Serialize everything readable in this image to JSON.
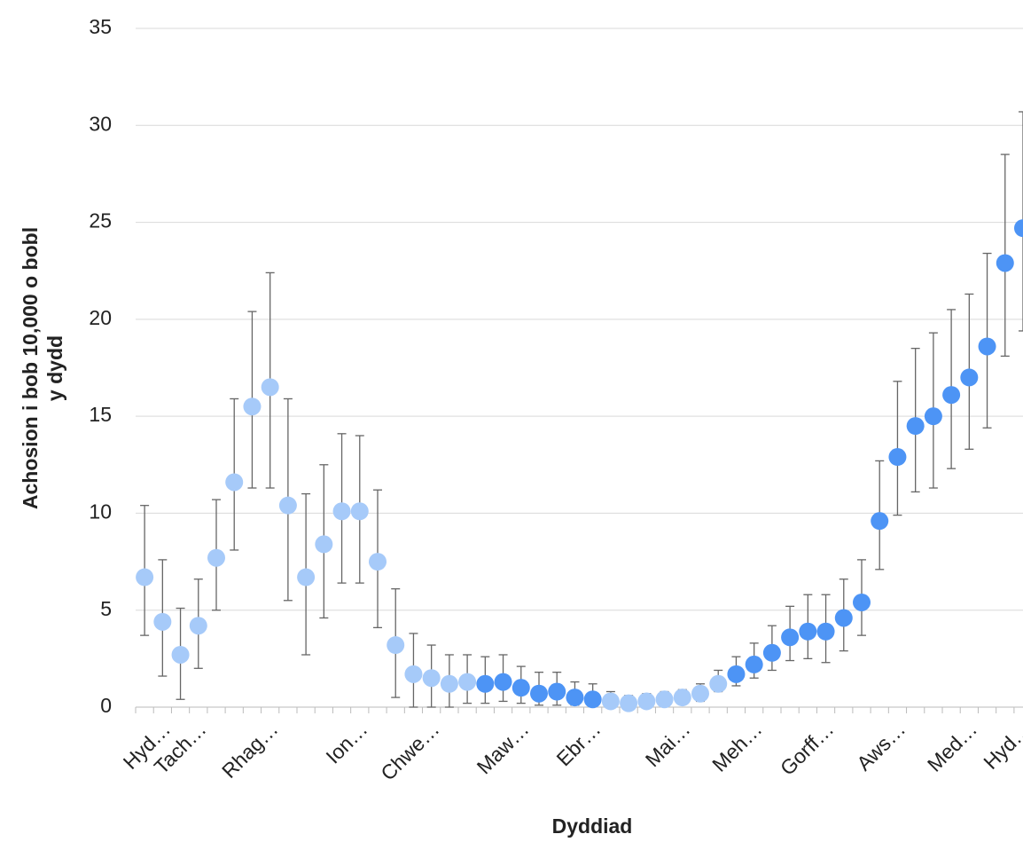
{
  "chart_data": {
    "type": "scatter",
    "y_label": [
      "Achosion i bob 10,000 o bobl",
      "y dydd"
    ],
    "x_label": "Dyddiad",
    "categories": [
      null,
      "Hyd…",
      null,
      "Tach…",
      null,
      null,
      null,
      "Rhag…",
      null,
      null,
      null,
      null,
      "Ion…",
      null,
      null,
      null,
      "Chwe…",
      null,
      null,
      null,
      null,
      "Maw…",
      null,
      null,
      null,
      "Ebr…",
      null,
      null,
      null,
      null,
      "Mai…",
      null,
      null,
      null,
      "Meh…",
      null,
      null,
      null,
      "Gorff…",
      null,
      null,
      null,
      "Aws…",
      null,
      null,
      null,
      "Med…",
      null,
      null,
      "Hyd…"
    ],
    "series": [
      {
        "color": "#a6caf9",
        "values": [
          6.7,
          4.4,
          2.7,
          4.2,
          7.7,
          11.6,
          15.5,
          16.5,
          10.4,
          6.7,
          8.4,
          10.1,
          10.1,
          7.5,
          3.2,
          1.7,
          1.5,
          1.2,
          1.3,
          null,
          null,
          null,
          null,
          null,
          null,
          null,
          0.3,
          0.2,
          0.3,
          0.4,
          0.5,
          0.7,
          1.2,
          null,
          null,
          null,
          null,
          null,
          null,
          null,
          null,
          null,
          null,
          null,
          null,
          null,
          null,
          null,
          null,
          null
        ],
        "low": [
          3.7,
          1.6,
          0.4,
          2.0,
          5.0,
          8.1,
          11.3,
          11.3,
          5.5,
          2.7,
          4.6,
          6.4,
          6.4,
          4.1,
          0.5,
          0,
          0,
          0,
          0.2,
          null,
          null,
          null,
          null,
          null,
          null,
          null,
          0,
          0,
          0,
          0.1,
          0.2,
          0.3,
          0.8,
          null,
          null,
          null,
          null,
          null,
          null,
          null,
          null,
          null,
          null,
          null,
          null,
          null,
          null,
          null,
          null,
          null
        ],
        "high": [
          10.4,
          7.6,
          5.1,
          6.6,
          10.7,
          15.9,
          20.4,
          22.4,
          15.9,
          11.0,
          12.5,
          14.1,
          14.0,
          11.2,
          6.1,
          3.8,
          3.2,
          2.7,
          2.7,
          null,
          null,
          null,
          null,
          null,
          null,
          null,
          0.8,
          0.6,
          0.7,
          0.8,
          0.9,
          1.2,
          1.9,
          null,
          null,
          null,
          null,
          null,
          null,
          null,
          null,
          null,
          null,
          null,
          null,
          null,
          null,
          null,
          null,
          null
        ]
      },
      {
        "color": "#4d94f5",
        "values": [
          null,
          null,
          null,
          null,
          null,
          null,
          null,
          null,
          null,
          null,
          null,
          null,
          null,
          null,
          null,
          null,
          null,
          null,
          null,
          1.2,
          1.3,
          1.0,
          0.7,
          0.8,
          0.5,
          0.4,
          null,
          null,
          null,
          null,
          null,
          null,
          null,
          1.7,
          2.2,
          2.8,
          3.6,
          3.9,
          3.9,
          4.6,
          5.4,
          9.6,
          12.9,
          14.5,
          15.0,
          16.1,
          17.0,
          18.6,
          22.9,
          24.7
        ],
        "low": [
          null,
          null,
          null,
          null,
          null,
          null,
          null,
          null,
          null,
          null,
          null,
          null,
          null,
          null,
          null,
          null,
          null,
          null,
          null,
          0.2,
          0.3,
          0.2,
          0.1,
          0.1,
          0.1,
          0.1,
          null,
          null,
          null,
          null,
          null,
          null,
          null,
          1.1,
          1.5,
          1.9,
          2.4,
          2.5,
          2.3,
          2.9,
          3.7,
          7.1,
          9.9,
          11.1,
          11.3,
          12.3,
          13.3,
          14.4,
          18.1,
          19.4
        ],
        "high": [
          null,
          null,
          null,
          null,
          null,
          null,
          null,
          null,
          null,
          null,
          null,
          null,
          null,
          null,
          null,
          null,
          null,
          null,
          null,
          2.6,
          2.7,
          2.1,
          1.8,
          1.8,
          1.3,
          1.2,
          null,
          null,
          null,
          null,
          null,
          null,
          null,
          2.6,
          3.3,
          4.2,
          5.2,
          5.8,
          5.8,
          6.6,
          7.6,
          12.7,
          16.8,
          18.5,
          19.3,
          20.5,
          21.3,
          23.4,
          28.5,
          30.7
        ]
      }
    ],
    "ylim": [
      0,
      35
    ],
    "yticks": [
      0,
      5,
      10,
      15,
      20,
      25,
      30,
      35
    ],
    "grid": true
  }
}
